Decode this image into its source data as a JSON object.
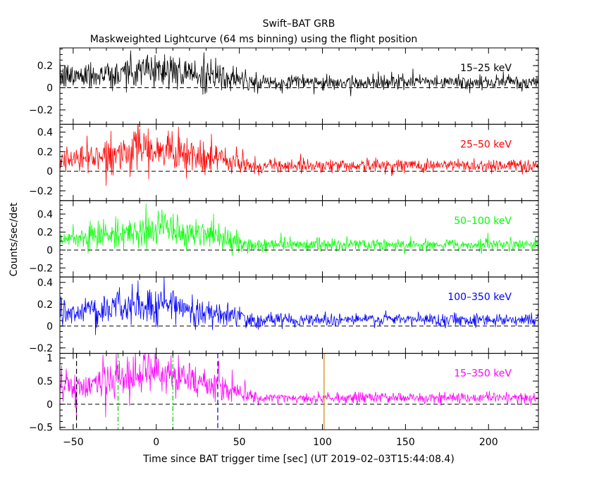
{
  "chart_data": {
    "type": "line",
    "title": "Swift–BAT GRB",
    "subtitle": "Maskweighted Lightcurve (64 ms binning) using the flight position",
    "xlabel": "Time since BAT trigger time [sec] (UT 2019–02–03T15:44:08.4)",
    "ylabel": "Counts/sec/det",
    "xlim": [
      -58,
      230
    ],
    "x_ticks": [
      -50,
      0,
      50,
      100,
      150,
      200
    ],
    "x_tick_labels": [
      "−50",
      "0",
      "50",
      "100",
      "150",
      "200"
    ],
    "binning_sec": 0.064,
    "panels": [
      {
        "name": "15–25 keV",
        "color": "#000000",
        "ylim": [
          -0.33,
          0.36
        ],
        "y_ticks": [
          -0.2,
          0,
          0.2
        ],
        "y_tick_labels": [
          "−0.2",
          "0",
          "0.2"
        ],
        "burst_amplitude": 0.14,
        "background_amplitude": 0.05,
        "noise_sigma_burst": 0.09,
        "noise_sigma_bg": 0.035
      },
      {
        "name": "25–50 keV",
        "color": "#ff0000",
        "ylim": [
          -0.3,
          0.48
        ],
        "y_ticks": [
          -0.2,
          0,
          0.2,
          0.4
        ],
        "y_tick_labels": [
          "−0.2",
          "0",
          "0.2",
          "0.4"
        ],
        "burst_amplitude": 0.18,
        "background_amplitude": 0.06,
        "noise_sigma_burst": 0.1,
        "noise_sigma_bg": 0.035
      },
      {
        "name": "50–100 keV",
        "color": "#00ff00",
        "ylim": [
          -0.3,
          0.55
        ],
        "y_ticks": [
          -0.2,
          0,
          0.2,
          0.4
        ],
        "y_tick_labels": [
          "−0.2",
          "0",
          "0.2",
          "0.4"
        ],
        "burst_amplitude": 0.2,
        "background_amplitude": 0.06,
        "noise_sigma_burst": 0.1,
        "noise_sigma_bg": 0.035
      },
      {
        "name": "100–350 keV",
        "color": "#0000ff",
        "ylim": [
          -0.25,
          0.45
        ],
        "y_ticks": [
          -0.2,
          0,
          0.2,
          0.4
        ],
        "y_tick_labels": [
          "−0.2",
          "0",
          "0.2",
          "0.4"
        ],
        "burst_amplitude": 0.17,
        "background_amplitude": 0.06,
        "noise_sigma_burst": 0.09,
        "noise_sigma_bg": 0.03
      },
      {
        "name": "15–350 keV",
        "color": "#ff00ff",
        "ylim": [
          -0.55,
          1.1
        ],
        "y_ticks": [
          -0.5,
          0,
          0.5,
          1
        ],
        "y_tick_labels": [
          "−0.5",
          "0",
          "0.5",
          "1"
        ],
        "burst_amplitude": 0.6,
        "background_amplitude": 0.14,
        "noise_sigma_burst": 0.25,
        "noise_sigma_bg": 0.06
      }
    ],
    "burst_profile": {
      "active_start": -58,
      "rise_end": 5,
      "decay_end": 65
    },
    "markers": [
      {
        "x": -48,
        "color": "#000000",
        "style": "dashed"
      },
      {
        "x": -23,
        "color": "#00cc00",
        "style": "dashdot"
      },
      {
        "x": 10,
        "color": "#00cc00",
        "style": "dashdot"
      },
      {
        "x": 37,
        "color": "#0000aa",
        "style": "dashed"
      },
      {
        "x": 101,
        "color": "#cc8800",
        "style": "solid"
      }
    ],
    "grid": false,
    "legend": "none"
  }
}
